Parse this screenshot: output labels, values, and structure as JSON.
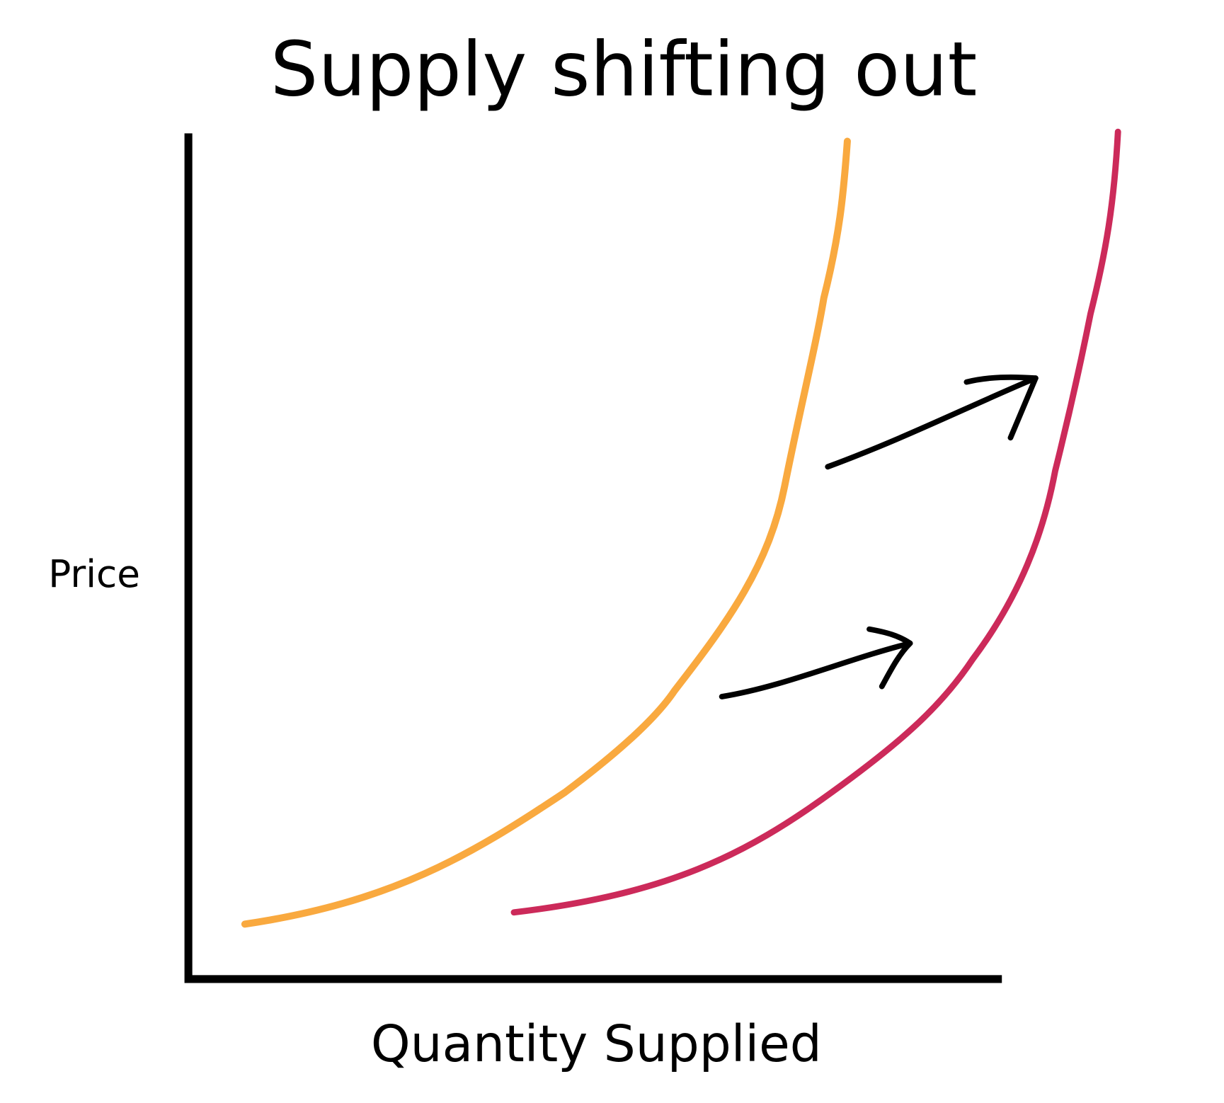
{
  "title": "Supply shifting out",
  "y_axis_label": "Price",
  "x_axis_label": "Quantity Supplied"
}
